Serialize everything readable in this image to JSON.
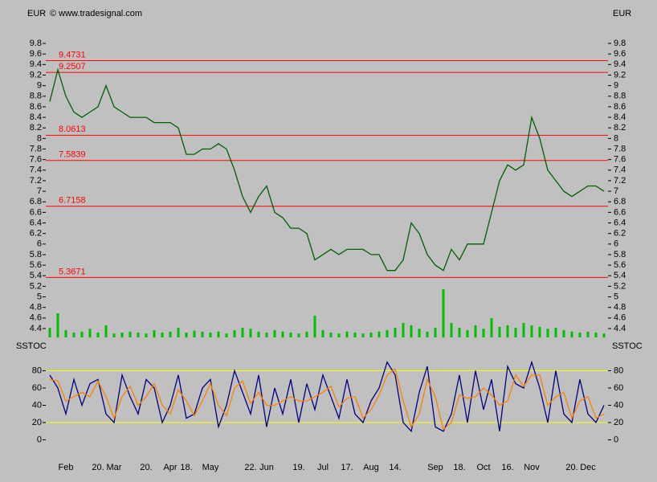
{
  "chart_data": [
    {
      "type": "line",
      "currency": "EUR",
      "source": "© www.tradesignal.com",
      "categories": [
        null,
        null,
        "Feb",
        null,
        null,
        null,
        "20.",
        null,
        "Mar",
        null,
        null,
        null,
        "20.",
        null,
        null,
        "Apr",
        null,
        "18.",
        null,
        null,
        "May",
        null,
        null,
        null,
        null,
        "22.",
        null,
        "Jun",
        null,
        null,
        null,
        "19.",
        null,
        null,
        "Jul",
        null,
        null,
        "17.",
        null,
        null,
        "Aug",
        null,
        null,
        "14.",
        null,
        null,
        null,
        null,
        "Sep",
        null,
        null,
        "18.",
        null,
        null,
        "Oct",
        null,
        null,
        "16.",
        null,
        null,
        "Nov",
        null,
        null,
        null,
        null,
        "20.",
        null,
        "Dec",
        null,
        null
      ],
      "series": [
        {
          "color": "#006000",
          "values": [
            8.7,
            9.3,
            8.8,
            8.5,
            8.4,
            8.5,
            8.6,
            9.0,
            8.6,
            8.5,
            8.4,
            8.4,
            8.4,
            8.3,
            8.3,
            8.3,
            8.2,
            7.7,
            7.7,
            7.8,
            7.8,
            7.9,
            7.8,
            7.4,
            6.9,
            6.6,
            6.9,
            7.1,
            6.6,
            6.5,
            6.3,
            6.3,
            6.2,
            5.7,
            5.8,
            5.9,
            5.8,
            5.9,
            5.9,
            5.9,
            5.8,
            5.8,
            5.5,
            5.5,
            5.7,
            6.4,
            6.2,
            5.8,
            5.6,
            5.5,
            5.9,
            5.7,
            6.0,
            6.0,
            6.0,
            6.6,
            7.2,
            7.5,
            7.4,
            7.5,
            8.4,
            8.0,
            7.4,
            7.2,
            7.0,
            6.9,
            7.0,
            7.1,
            7.1,
            7.0
          ]
        }
      ],
      "volume": {
        "color": "#00c000",
        "values": [
          20,
          50,
          15,
          10,
          12,
          18,
          10,
          25,
          8,
          10,
          12,
          10,
          8,
          15,
          10,
          12,
          20,
          10,
          14,
          12,
          10,
          12,
          8,
          15,
          20,
          18,
          12,
          10,
          15,
          12,
          10,
          8,
          12,
          45,
          15,
          10,
          8,
          12,
          10,
          8,
          10,
          12,
          15,
          20,
          30,
          25,
          18,
          12,
          20,
          100,
          30,
          20,
          15,
          25,
          18,
          40,
          22,
          25,
          20,
          30,
          25,
          22,
          18,
          20,
          15,
          12,
          10,
          12,
          10,
          8
        ]
      },
      "levels": [
        9.4731,
        9.2507,
        8.0613,
        7.5839,
        6.7158,
        5.3671
      ],
      "level_color": "#ff0000",
      "ylim": [
        4.08,
        10.47
      ],
      "yticks": [
        4.4,
        4.6,
        4.8,
        5,
        5.2,
        5.4,
        5.6,
        5.8,
        6,
        6.2,
        6.4,
        6.6,
        6.8,
        7,
        7.2,
        7.4,
        7.6,
        7.8,
        8,
        8.2,
        8.4,
        8.6,
        8.8,
        9,
        9.2,
        9.4,
        9.6,
        9.8
      ]
    },
    {
      "type": "line",
      "indicator": "SSTOC",
      "series": [
        {
          "color": "#000080",
          "values": [
            75,
            60,
            30,
            70,
            40,
            65,
            70,
            30,
            20,
            75,
            50,
            30,
            70,
            60,
            20,
            40,
            75,
            25,
            30,
            60,
            70,
            15,
            40,
            80,
            55,
            30,
            75,
            15,
            60,
            30,
            70,
            20,
            65,
            35,
            75,
            50,
            25,
            70,
            30,
            20,
            45,
            60,
            90,
            75,
            20,
            10,
            55,
            85,
            15,
            10,
            30,
            75,
            20,
            80,
            35,
            70,
            10,
            85,
            65,
            60,
            90,
            60,
            20,
            80,
            30,
            20,
            70,
            30,
            20,
            40
          ]
        },
        {
          "color": "#ff8000",
          "values": [
            70,
            68,
            45,
            50,
            55,
            50,
            68,
            50,
            25,
            50,
            62,
            40,
            50,
            65,
            40,
            30,
            58,
            45,
            28,
            45,
            65,
            40,
            28,
            60,
            68,
            42,
            55,
            40,
            40,
            45,
            50,
            45,
            45,
            50,
            55,
            62,
            38,
            48,
            50,
            25,
            35,
            52,
            75,
            82,
            45,
            15,
            30,
            70,
            50,
            12,
            20,
            52,
            48,
            50,
            60,
            52,
            40,
            45,
            75,
            62,
            75,
            75,
            40,
            50,
            55,
            25,
            45,
            50,
            25,
            30
          ]
        }
      ],
      "bands": [
        80,
        20
      ],
      "band_color": "#ffff00",
      "ylim": [
        -20,
        100
      ],
      "yticks": [
        0,
        20,
        40,
        60,
        80
      ]
    }
  ]
}
